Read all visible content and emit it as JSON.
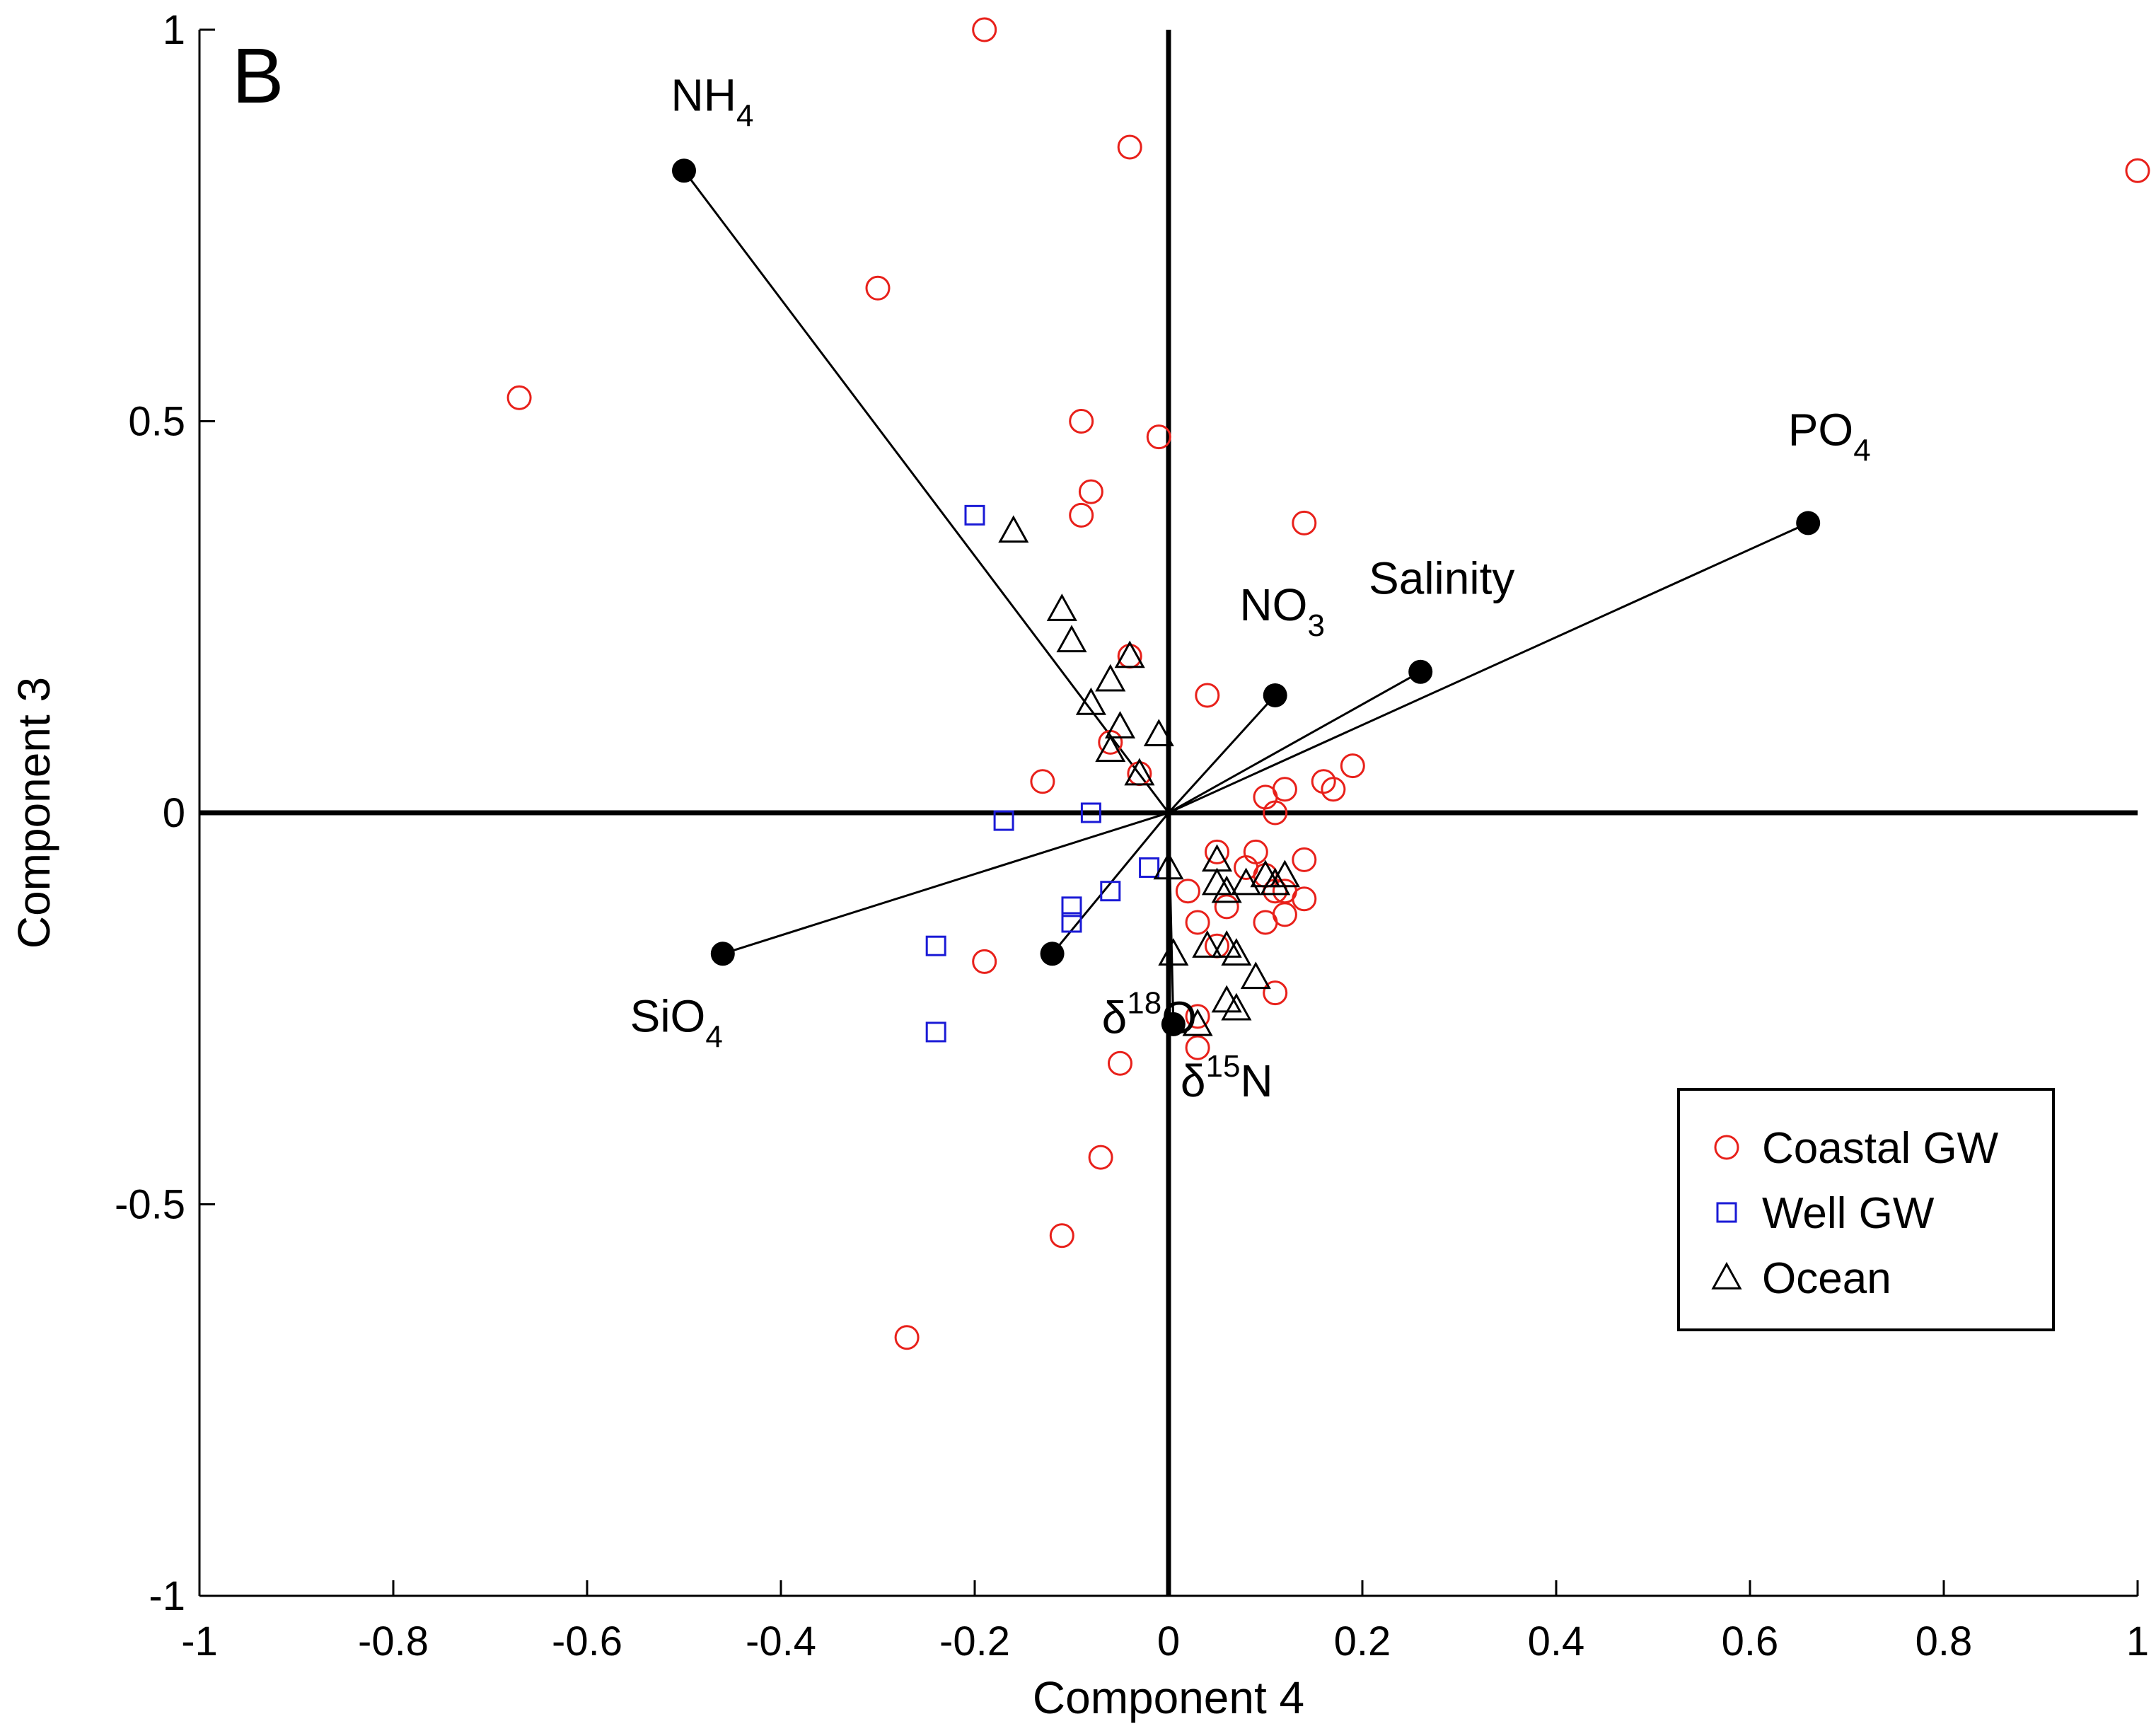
{
  "colors": {
    "coastal": "#e8201a",
    "well": "#1a1ad6",
    "ocean": "#000000",
    "axis": "#000000"
  },
  "chart_data": {
    "type": "scatter",
    "panel_label": "B",
    "xlabel": "Component 4",
    "ylabel": "Component 3",
    "xlim": [
      -1,
      1
    ],
    "ylim": [
      -1,
      1
    ],
    "x_ticks": [
      -1,
      -0.8,
      -0.6,
      -0.4,
      -0.2,
      0,
      0.2,
      0.4,
      0.6,
      0.8,
      1
    ],
    "x_tick_labels": [
      "-1",
      "-0.8",
      "-0.6",
      "-0.4",
      "-0.2",
      "0",
      "0.2",
      "0.4",
      "0.6",
      "0.8",
      "1"
    ],
    "y_ticks": [
      -1,
      -0.5,
      0,
      0.5,
      1
    ],
    "y_tick_labels": [
      "-1",
      "-0.5",
      "0",
      "0.5",
      "1"
    ],
    "legend": {
      "position": "lower-right",
      "entries": [
        "Coastal GW",
        "Well GW",
        "Ocean"
      ]
    },
    "loadings": [
      {
        "name": "NH4",
        "base": "NH",
        "sub": "4",
        "sup": "",
        "x": -0.5,
        "y": 0.82,
        "label_pos": "above"
      },
      {
        "name": "PO4",
        "base": "PO",
        "sub": "4",
        "sup": "",
        "x": 0.66,
        "y": 0.37,
        "label_pos": "above"
      },
      {
        "name": "Salinity",
        "base": "Salinity",
        "sub": "",
        "sup": "",
        "x": 0.26,
        "y": 0.18,
        "label_pos": "above"
      },
      {
        "name": "NO3",
        "base": "NO",
        "sub": "3",
        "sup": "",
        "x": 0.11,
        "y": 0.15,
        "label_pos": "above"
      },
      {
        "name": "SiO4",
        "base": "SiO",
        "sub": "4",
        "sup": "",
        "x": -0.46,
        "y": -0.18,
        "label_pos": "below-left"
      },
      {
        "name": "δ18O",
        "base": "δ",
        "sub": "",
        "sup": "18",
        "tail": "O",
        "x": -0.12,
        "y": -0.18,
        "label_pos": "below-right"
      },
      {
        "name": "δ15N",
        "base": "δ",
        "sub": "",
        "sup": "15",
        "tail": "N",
        "x": 0.005,
        "y": -0.27,
        "label_pos": "below-right"
      }
    ],
    "series": [
      {
        "name": "Coastal GW",
        "marker": "circle",
        "points": [
          [
            -0.19,
            1.0
          ],
          [
            -0.04,
            0.85
          ],
          [
            1.0,
            0.82
          ],
          [
            -0.3,
            0.67
          ],
          [
            -0.67,
            0.53
          ],
          [
            -0.09,
            0.5
          ],
          [
            -0.01,
            0.48
          ],
          [
            -0.08,
            0.41
          ],
          [
            -0.09,
            0.38
          ],
          [
            0.14,
            0.37
          ],
          [
            -0.04,
            0.2
          ],
          [
            0.04,
            0.15
          ],
          [
            -0.06,
            0.09
          ],
          [
            -0.03,
            0.05
          ],
          [
            -0.13,
            0.04
          ],
          [
            0.16,
            0.04
          ],
          [
            0.19,
            0.06
          ],
          [
            0.17,
            0.03
          ],
          [
            0.12,
            0.03
          ],
          [
            0.1,
            0.02
          ],
          [
            0.11,
            0.0
          ],
          [
            0.05,
            -0.05
          ],
          [
            0.09,
            -0.05
          ],
          [
            0.14,
            -0.06
          ],
          [
            0.08,
            -0.07
          ],
          [
            0.1,
            -0.08
          ],
          [
            0.11,
            -0.1
          ],
          [
            0.12,
            -0.1
          ],
          [
            0.02,
            -0.1
          ],
          [
            0.14,
            -0.11
          ],
          [
            0.06,
            -0.12
          ],
          [
            0.12,
            -0.13
          ],
          [
            0.03,
            -0.14
          ],
          [
            0.1,
            -0.14
          ],
          [
            0.05,
            -0.17
          ],
          [
            -0.19,
            -0.19
          ],
          [
            0.11,
            -0.23
          ],
          [
            0.03,
            -0.26
          ],
          [
            0.03,
            -0.3
          ],
          [
            -0.05,
            -0.32
          ],
          [
            -0.07,
            -0.44
          ],
          [
            -0.11,
            -0.54
          ],
          [
            -0.27,
            -0.67
          ]
        ]
      },
      {
        "name": "Well GW",
        "marker": "square",
        "points": [
          [
            -0.2,
            0.38
          ],
          [
            -0.17,
            -0.01
          ],
          [
            -0.08,
            0.0
          ],
          [
            -0.02,
            -0.07
          ],
          [
            -0.06,
            -0.1
          ],
          [
            -0.1,
            -0.12
          ],
          [
            -0.1,
            -0.14
          ],
          [
            -0.24,
            -0.17
          ],
          [
            -0.24,
            -0.28
          ]
        ]
      },
      {
        "name": "Ocean",
        "marker": "triangle",
        "points": [
          [
            -0.16,
            0.36
          ],
          [
            -0.11,
            0.26
          ],
          [
            -0.1,
            0.22
          ],
          [
            -0.04,
            0.2
          ],
          [
            -0.06,
            0.17
          ],
          [
            -0.08,
            0.14
          ],
          [
            -0.05,
            0.11
          ],
          [
            -0.01,
            0.1
          ],
          [
            -0.06,
            0.08
          ],
          [
            -0.03,
            0.05
          ],
          [
            0.0,
            -0.07
          ],
          [
            0.05,
            -0.06
          ],
          [
            0.05,
            -0.09
          ],
          [
            0.06,
            -0.1
          ],
          [
            0.08,
            -0.09
          ],
          [
            0.1,
            -0.08
          ],
          [
            0.11,
            -0.09
          ],
          [
            0.12,
            -0.08
          ],
          [
            0.06,
            -0.17
          ],
          [
            0.04,
            -0.17
          ],
          [
            0.07,
            -0.18
          ],
          [
            0.09,
            -0.21
          ],
          [
            0.06,
            -0.24
          ],
          [
            0.07,
            -0.25
          ],
          [
            0.03,
            -0.27
          ],
          [
            0.005,
            -0.18
          ]
        ]
      }
    ]
  }
}
